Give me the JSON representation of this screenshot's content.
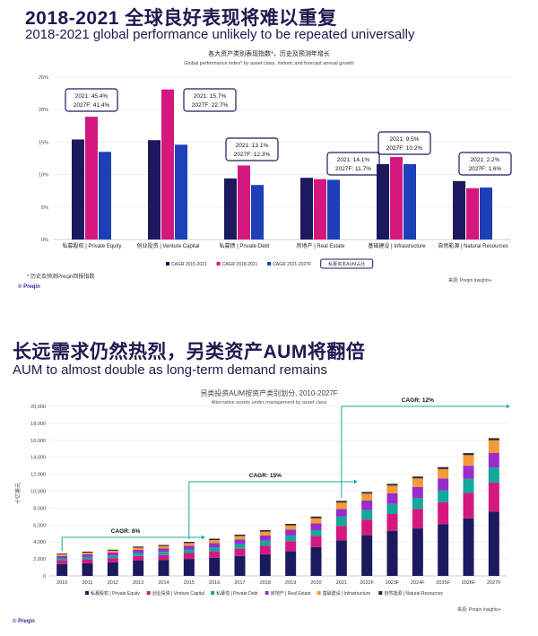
{
  "slide1": {
    "title_cn": "2018-2021 全球良好表现将难以重复",
    "title_en": "2018-2021 global performance unlikely to be repeated universally",
    "footnote": "* 历史及预测Preqin回报指数",
    "source": "来源: Preqin Insights+",
    "brand": "© Preqin"
  },
  "slide2": {
    "title_cn": "长远需求仍然热烈，另类资产AUM将翻倍",
    "title_en": "AUM to almost double as long-term demand remains",
    "source": "来源: Preqin Insights+",
    "brand": "© Preqin"
  },
  "chart_data": [
    {
      "type": "bar",
      "title": "各大资产类别表现指数*，历史及预测年增长",
      "subtitle": "Global performance index* by asset class, historic and forecast annual growth",
      "categories": [
        "私募股权 | Private Equity",
        "创业投资 | Venture Capital",
        "私募债 | Private Debt",
        "房地产 | Real Estate",
        "基础建设 | Infrastructure",
        "自然能源 | Natural Resources"
      ],
      "series": [
        {
          "name": "CAGR 2015-2021",
          "color": "#1c1a5e",
          "values": [
            15.4,
            15.3,
            9.4,
            9.5,
            11.6,
            9.0
          ]
        },
        {
          "name": "CAGR 2018-2021",
          "color": "#d4187f",
          "values": [
            18.9,
            23.1,
            11.4,
            9.3,
            12.7,
            7.9
          ]
        },
        {
          "name": "CAGR 2021-2027F",
          "color": "#1d3fb8",
          "values": [
            13.5,
            14.6,
            8.4,
            9.2,
            11.6,
            8.0
          ]
        }
      ],
      "annotations": [
        [
          "2021: 45.4%",
          "2027F: 41.4%"
        ],
        [
          "2021: 15.7%",
          "2027F: 22.7%"
        ],
        [
          "2021: 13.1%",
          "2027F: 12.3%"
        ],
        [
          "2021: 14.1%",
          "2027F: 11.7%"
        ],
        [
          "2021: 9.5%",
          "2027F: 10.2%"
        ],
        [
          "2021: 2.2%",
          "2027F: 1.6%"
        ]
      ],
      "legend_extra": "私募资本AUM占比",
      "yticks": [
        "0%",
        "5%",
        "10%",
        "15%",
        "20%",
        "25%"
      ],
      "ylim": [
        0,
        25
      ]
    },
    {
      "type": "bar",
      "stacked": true,
      "title": "另类投资AUM按资产类别划分, 2010-2027F",
      "subtitle": "Alternative assets under management by asset class",
      "ylabel": "十亿美元",
      "categories": [
        "2010",
        "2011",
        "2012",
        "2013",
        "2014",
        "2015",
        "2016",
        "2017",
        "2018",
        "2019",
        "2020",
        "2021",
        "2022F",
        "2023F",
        "2024F",
        "2025F",
        "2026F",
        "2027F"
      ],
      "series": [
        {
          "name": "私募股权 | Private Equity",
          "color": "#1c1a5e",
          "values": [
            1400,
            1500,
            1600,
            1800,
            1850,
            2000,
            2150,
            2350,
            2550,
            2900,
            3400,
            4200,
            4800,
            5300,
            5600,
            6100,
            6800,
            7600
          ]
        },
        {
          "name": "创业投资 | Venture Capital",
          "color": "#d4187f",
          "values": [
            400,
            450,
            500,
            550,
            600,
            700,
            750,
            850,
            1000,
            1200,
            1300,
            1700,
            1850,
            2000,
            2300,
            2600,
            3000,
            3400
          ]
        },
        {
          "name": "私募债 | Private Debt",
          "color": "#12a89a",
          "values": [
            250,
            280,
            300,
            350,
            380,
            420,
            480,
            550,
            600,
            650,
            700,
            1100,
            1100,
            1200,
            1300,
            1400,
            1650,
            1800
          ]
        },
        {
          "name": "房地产 | Real Estate",
          "color": "#9b2ccc",
          "values": [
            300,
            320,
            350,
            380,
            400,
            450,
            500,
            550,
            620,
            700,
            800,
            900,
            1150,
            1250,
            1300,
            1400,
            1550,
            1700
          ]
        },
        {
          "name": "基础建设 | Infrastructure",
          "color": "#f39a3a",
          "values": [
            180,
            200,
            220,
            250,
            280,
            300,
            350,
            400,
            450,
            500,
            600,
            750,
            800,
            900,
            1000,
            1100,
            1250,
            1500
          ]
        },
        {
          "name": "自然能源 | Natural Resources",
          "color": "#2d2d2d",
          "values": [
            100,
            110,
            120,
            130,
            140,
            150,
            160,
            170,
            180,
            190,
            200,
            200,
            200,
            210,
            220,
            230,
            240,
            250
          ]
        }
      ],
      "cagr_labels": [
        "CAGR: 8%",
        "CAGR: 15%",
        "CAGR: 12%"
      ],
      "yticks": [
        "0",
        "2,000",
        "4,000",
        "6,000",
        "8,000",
        "10,000",
        "12,000",
        "14,000",
        "16,000",
        "18,000",
        "20,000"
      ],
      "ylim": [
        0,
        20000
      ]
    }
  ]
}
